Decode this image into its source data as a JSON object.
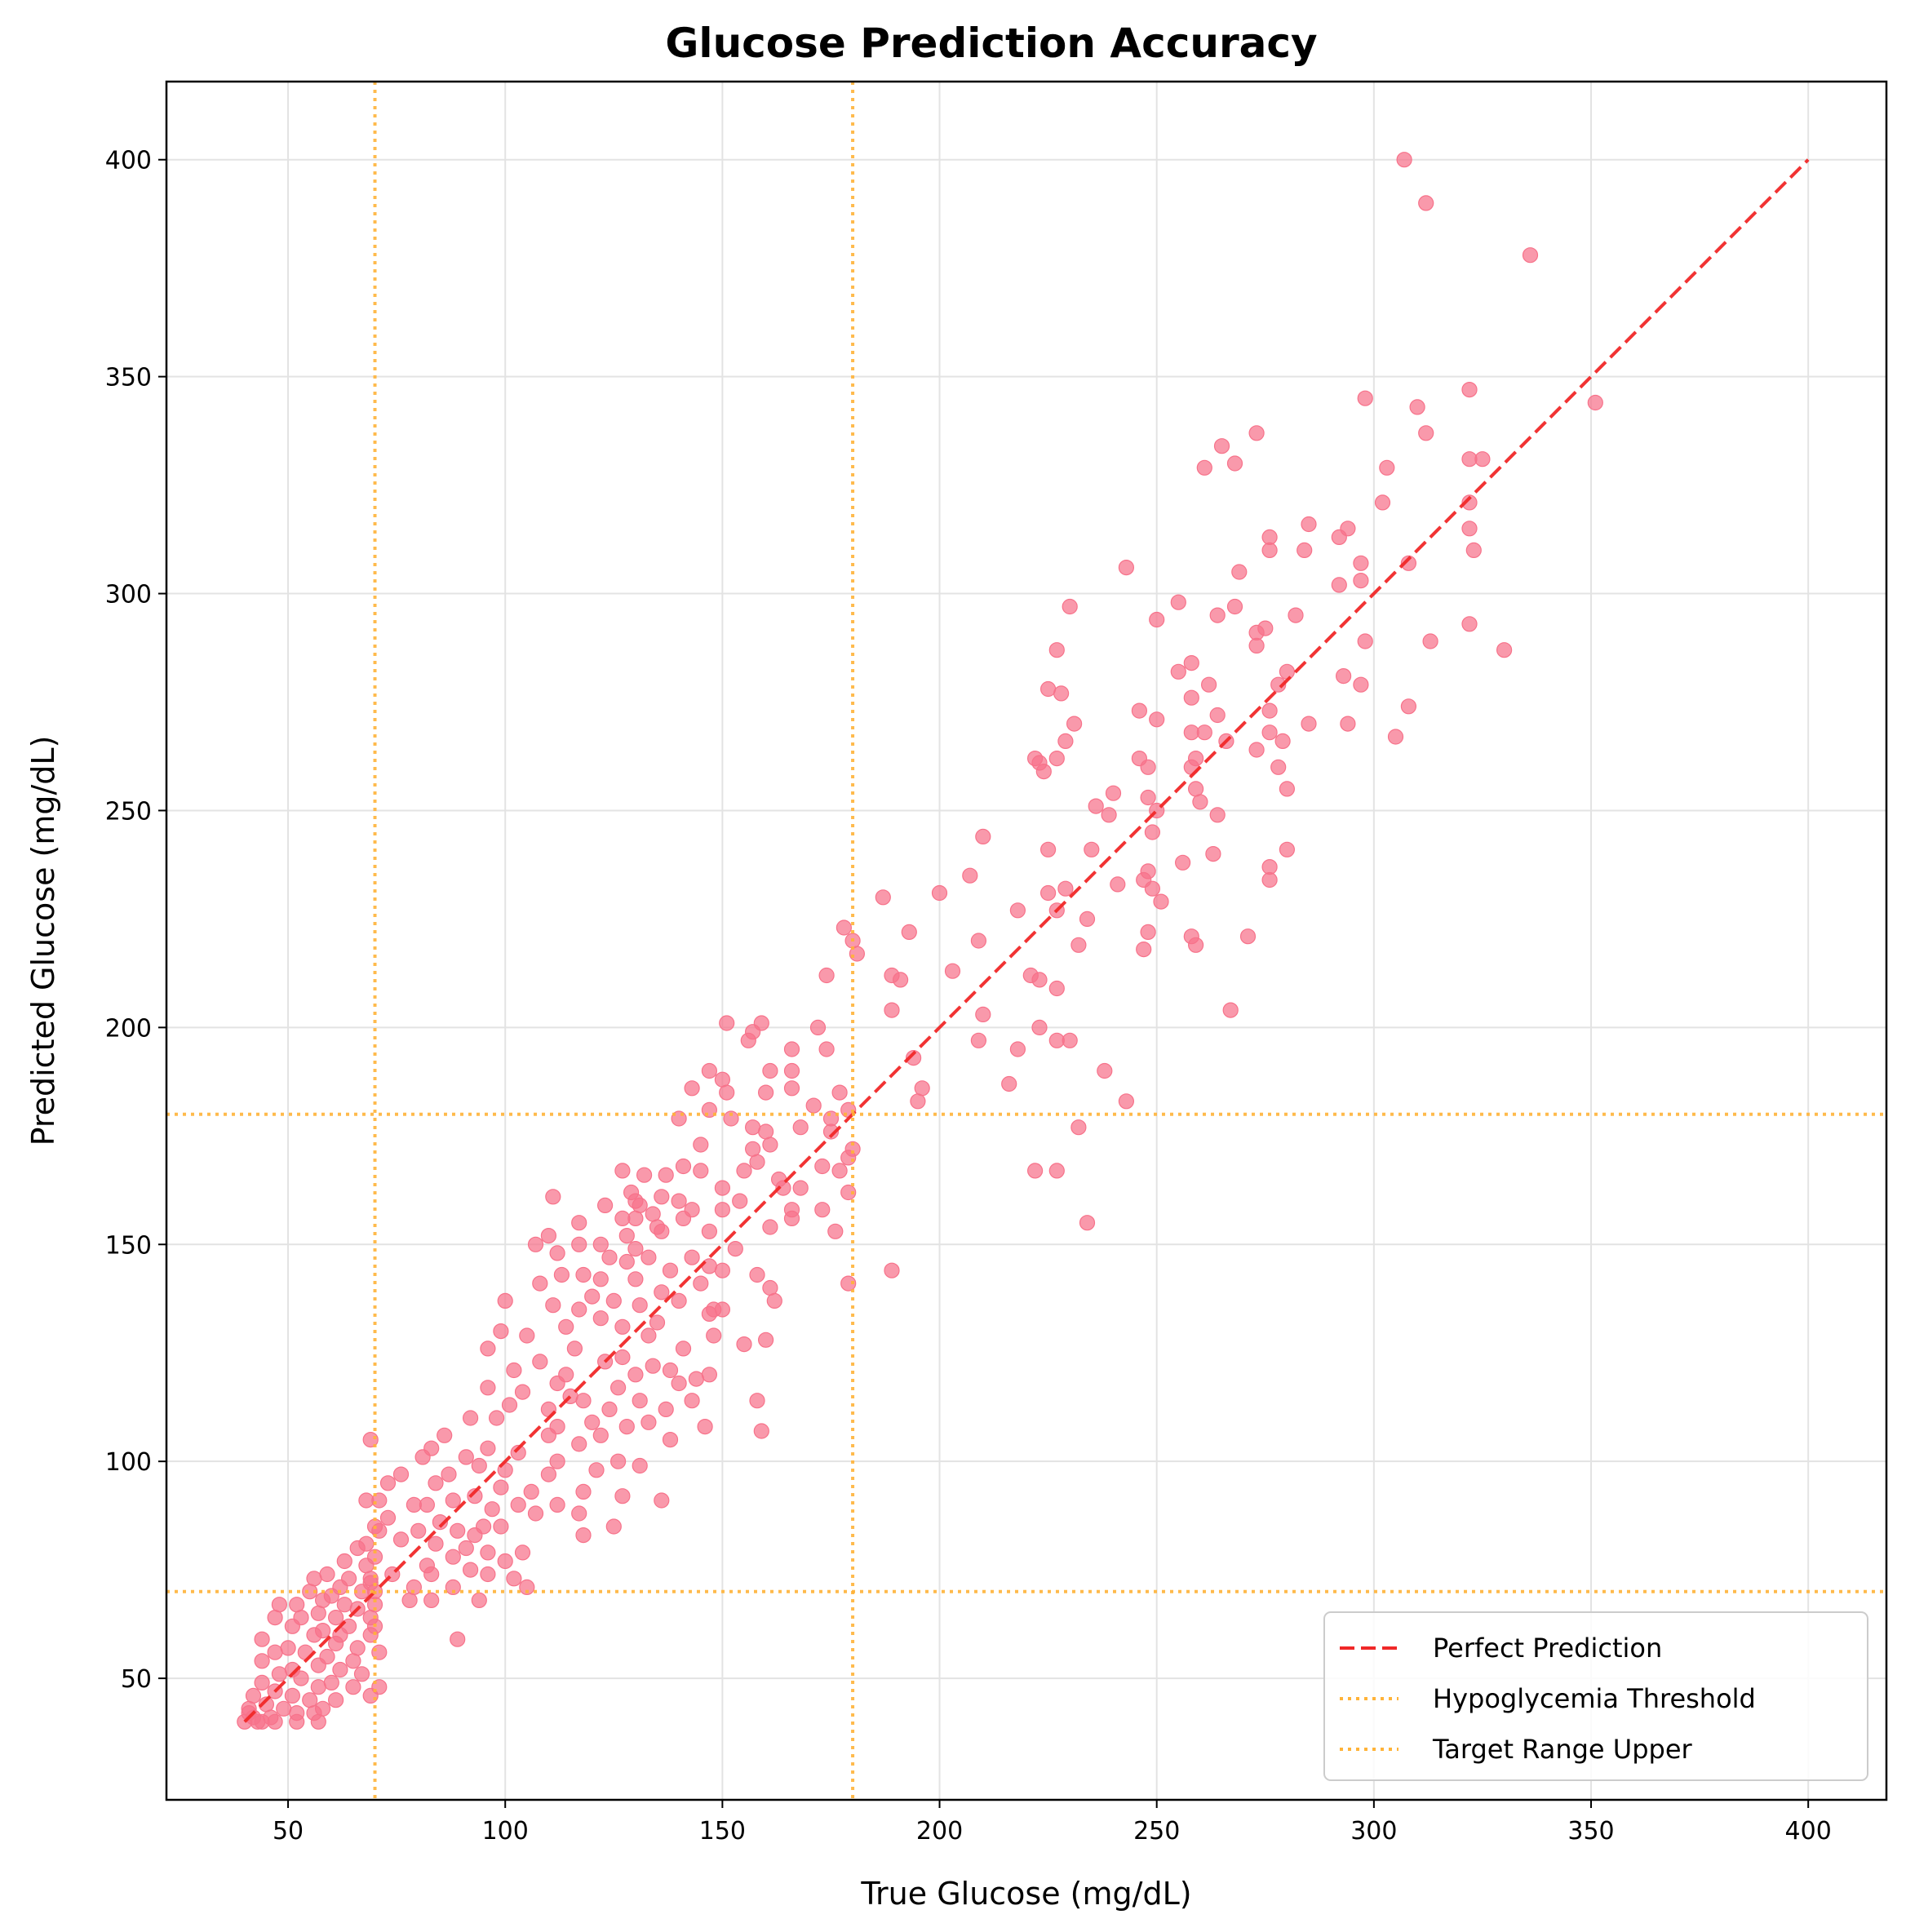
{
  "chart_data": {
    "type": "scatter",
    "title": "Glucose Prediction Accuracy",
    "xlabel": "True Glucose (mg/dL)",
    "ylabel": "Predicted Glucose (mg/dL)",
    "xlim": [
      22,
      418
    ],
    "ylim": [
      22,
      418
    ],
    "x_ticks": [
      50,
      100,
      150,
      200,
      250,
      300,
      350,
      400
    ],
    "y_ticks": [
      50,
      100,
      150,
      200,
      250,
      300,
      350,
      400
    ],
    "grid": true,
    "legend_position": "bottom-right",
    "colors": {
      "points": "#f7728a",
      "perfect_line": "#f02828",
      "thresholds": "#ffb338",
      "grid": "#e3e3e3"
    },
    "reference_lines": [
      {
        "name": "Perfect Prediction",
        "kind": "diagonal",
        "from": [
          40,
          40
        ],
        "to": [
          400,
          400
        ],
        "style": "dashed"
      },
      {
        "name": "Hypoglycemia Threshold",
        "kind": "vertical",
        "x": 70,
        "style": "dotted"
      },
      {
        "name": "Hypoglycemia Threshold",
        "kind": "horizontal",
        "y": 70,
        "style": "dotted"
      },
      {
        "name": "Target Range Upper",
        "kind": "vertical",
        "x": 180,
        "style": "dotted"
      },
      {
        "name": "Target Range Upper",
        "kind": "horizontal",
        "y": 180,
        "style": "dotted"
      }
    ],
    "legend": [
      "Perfect Prediction",
      "Hypoglycemia Threshold",
      "Target Range Upper"
    ],
    "points": [
      [
        307,
        400
      ],
      [
        312,
        390
      ],
      [
        336,
        378
      ],
      [
        351,
        344
      ],
      [
        322,
        347
      ],
      [
        310,
        343
      ],
      [
        298,
        345
      ],
      [
        312,
        337
      ],
      [
        273,
        337
      ],
      [
        265,
        334
      ],
      [
        261,
        329
      ],
      [
        268,
        330
      ],
      [
        303,
        329
      ],
      [
        322,
        331
      ],
      [
        325,
        331
      ],
      [
        302,
        321
      ],
      [
        322,
        321
      ],
      [
        285,
        316
      ],
      [
        294,
        315
      ],
      [
        276,
        313
      ],
      [
        292,
        313
      ],
      [
        322,
        315
      ],
      [
        323,
        310
      ],
      [
        284,
        310
      ],
      [
        276,
        310
      ],
      [
        297,
        307
      ],
      [
        308,
        307
      ],
      [
        243,
        306
      ],
      [
        269,
        305
      ],
      [
        292,
        302
      ],
      [
        297,
        303
      ],
      [
        255,
        298
      ],
      [
        268,
        297
      ],
      [
        230,
        297
      ],
      [
        250,
        294
      ],
      [
        264,
        295
      ],
      [
        282,
        295
      ],
      [
        322,
        293
      ],
      [
        275,
        292
      ],
      [
        273,
        291
      ],
      [
        313,
        289
      ],
      [
        298,
        289
      ],
      [
        273,
        288
      ],
      [
        330,
        287
      ],
      [
        227,
        287
      ],
      [
        258,
        284
      ],
      [
        255,
        282
      ],
      [
        280,
        282
      ],
      [
        293,
        281
      ],
      [
        262,
        279
      ],
      [
        278,
        279
      ],
      [
        225,
        278
      ],
      [
        228,
        277
      ],
      [
        258,
        276
      ],
      [
        297,
        279
      ],
      [
        264,
        272
      ],
      [
        276,
        273
      ],
      [
        308,
        274
      ],
      [
        246,
        273
      ],
      [
        231,
        270
      ],
      [
        285,
        270
      ],
      [
        294,
        270
      ],
      [
        250,
        271
      ],
      [
        276,
        268
      ],
      [
        258,
        268
      ],
      [
        261,
        268
      ],
      [
        266,
        266
      ],
      [
        229,
        266
      ],
      [
        279,
        266
      ],
      [
        305,
        267
      ],
      [
        273,
        264
      ],
      [
        278,
        260
      ],
      [
        246,
        262
      ],
      [
        227,
        262
      ],
      [
        222,
        262
      ],
      [
        259,
        262
      ],
      [
        258,
        260
      ],
      [
        248,
        260
      ],
      [
        223,
        261
      ],
      [
        224,
        259
      ],
      [
        260,
        252
      ],
      [
        280,
        255
      ],
      [
        259,
        255
      ],
      [
        240,
        254
      ],
      [
        248,
        253
      ],
      [
        239,
        249
      ],
      [
        264,
        249
      ],
      [
        236,
        251
      ],
      [
        250,
        250
      ],
      [
        249,
        245
      ],
      [
        210,
        244
      ],
      [
        225,
        241
      ],
      [
        263,
        240
      ],
      [
        235,
        241
      ],
      [
        280,
        241
      ],
      [
        276,
        237
      ],
      [
        256,
        238
      ],
      [
        248,
        236
      ],
      [
        207,
        235
      ],
      [
        241,
        233
      ],
      [
        247,
        234
      ],
      [
        276,
        234
      ],
      [
        249,
        232
      ],
      [
        229,
        232
      ],
      [
        200,
        231
      ],
      [
        225,
        231
      ],
      [
        187,
        230
      ],
      [
        251,
        229
      ],
      [
        227,
        227
      ],
      [
        218,
        227
      ],
      [
        234,
        225
      ],
      [
        178,
        223
      ],
      [
        193,
        222
      ],
      [
        248,
        222
      ],
      [
        258,
        221
      ],
      [
        271,
        221
      ],
      [
        209,
        220
      ],
      [
        259,
        219
      ],
      [
        232,
        219
      ],
      [
        180,
        220
      ],
      [
        247,
        218
      ],
      [
        181,
        217
      ],
      [
        203,
        213
      ],
      [
        221,
        212
      ],
      [
        191,
        211
      ],
      [
        174,
        212
      ],
      [
        189,
        212
      ],
      [
        223,
        211
      ],
      [
        227,
        209
      ],
      [
        210,
        203
      ],
      [
        189,
        204
      ],
      [
        267,
        204
      ],
      [
        151,
        201
      ],
      [
        159,
        201
      ],
      [
        157,
        199
      ],
      [
        172,
        200
      ],
      [
        223,
        200
      ],
      [
        209,
        197
      ],
      [
        230,
        197
      ],
      [
        156,
        197
      ],
      [
        174,
        195
      ],
      [
        166,
        195
      ],
      [
        227,
        197
      ],
      [
        218,
        195
      ],
      [
        194,
        193
      ],
      [
        196,
        186
      ],
      [
        166,
        190
      ],
      [
        147,
        190
      ],
      [
        238,
        190
      ],
      [
        161,
        190
      ],
      [
        216,
        187
      ],
      [
        150,
        188
      ],
      [
        143,
        186
      ],
      [
        166,
        186
      ],
      [
        151,
        185
      ],
      [
        160,
        185
      ],
      [
        243,
        183
      ],
      [
        195,
        183
      ],
      [
        177,
        185
      ],
      [
        171,
        182
      ],
      [
        147,
        181
      ],
      [
        175,
        179
      ],
      [
        179,
        181
      ],
      [
        232,
        177
      ],
      [
        175,
        176
      ],
      [
        160,
        176
      ],
      [
        157,
        177
      ],
      [
        152,
        179
      ],
      [
        140,
        179
      ],
      [
        161,
        173
      ],
      [
        180,
        172
      ],
      [
        168,
        177
      ],
      [
        145,
        173
      ],
      [
        179,
        170
      ],
      [
        158,
        169
      ],
      [
        157,
        172
      ],
      [
        173,
        168
      ],
      [
        141,
        168
      ],
      [
        137,
        166
      ],
      [
        127,
        167
      ],
      [
        132,
        166
      ],
      [
        145,
        167
      ],
      [
        155,
        167
      ],
      [
        177,
        167
      ],
      [
        222,
        167
      ],
      [
        227,
        167
      ],
      [
        163,
        165
      ],
      [
        168,
        163
      ],
      [
        150,
        163
      ],
      [
        164,
        163
      ],
      [
        154,
        160
      ],
      [
        136,
        161
      ],
      [
        129,
        162
      ],
      [
        111,
        161
      ],
      [
        130,
        160
      ],
      [
        140,
        160
      ],
      [
        150,
        158
      ],
      [
        143,
        158
      ],
      [
        123,
        159
      ],
      [
        131,
        159
      ],
      [
        166,
        158
      ],
      [
        173,
        158
      ],
      [
        179,
        162
      ],
      [
        134,
        157
      ],
      [
        127,
        156
      ],
      [
        166,
        156
      ],
      [
        130,
        156
      ],
      [
        141,
        156
      ],
      [
        117,
        155
      ],
      [
        135,
        154
      ],
      [
        136,
        153
      ],
      [
        110,
        152
      ],
      [
        128,
        152
      ],
      [
        147,
        153
      ],
      [
        176,
        153
      ],
      [
        161,
        154
      ],
      [
        234,
        155
      ],
      [
        122,
        150
      ],
      [
        153,
        149
      ],
      [
        130,
        149
      ],
      [
        133,
        147
      ],
      [
        117,
        150
      ],
      [
        107,
        150
      ],
      [
        112,
        148
      ],
      [
        124,
        147
      ],
      [
        143,
        147
      ],
      [
        128,
        146
      ],
      [
        147,
        145
      ],
      [
        138,
        144
      ],
      [
        150,
        144
      ],
      [
        118,
        143
      ],
      [
        158,
        143
      ],
      [
        130,
        142
      ],
      [
        122,
        142
      ],
      [
        113,
        143
      ],
      [
        108,
        141
      ],
      [
        145,
        141
      ],
      [
        179,
        141
      ],
      [
        189,
        144
      ],
      [
        161,
        140
      ],
      [
        136,
        139
      ],
      [
        120,
        138
      ],
      [
        125,
        137
      ],
      [
        140,
        137
      ],
      [
        148,
        135
      ],
      [
        162,
        137
      ],
      [
        100,
        137
      ],
      [
        131,
        136
      ],
      [
        111,
        136
      ],
      [
        117,
        135
      ],
      [
        150,
        135
      ],
      [
        147,
        134
      ],
      [
        122,
        133
      ],
      [
        135,
        132
      ],
      [
        127,
        131
      ],
      [
        114,
        131
      ],
      [
        99,
        130
      ],
      [
        105,
        129
      ],
      [
        133,
        129
      ],
      [
        148,
        129
      ],
      [
        160,
        128
      ],
      [
        155,
        127
      ],
      [
        141,
        126
      ],
      [
        116,
        126
      ],
      [
        127,
        124
      ],
      [
        123,
        123
      ],
      [
        134,
        122
      ],
      [
        138,
        121
      ],
      [
        147,
        120
      ],
      [
        108,
        123
      ],
      [
        96,
        126
      ],
      [
        102,
        121
      ],
      [
        114,
        120
      ],
      [
        130,
        120
      ],
      [
        140,
        118
      ],
      [
        112,
        118
      ],
      [
        144,
        119
      ],
      [
        126,
        117
      ],
      [
        96,
        117
      ],
      [
        104,
        116
      ],
      [
        115,
        115
      ],
      [
        118,
        114
      ],
      [
        131,
        114
      ],
      [
        137,
        112
      ],
      [
        143,
        114
      ],
      [
        158,
        114
      ],
      [
        101,
        113
      ],
      [
        110,
        112
      ],
      [
        124,
        112
      ],
      [
        133,
        109
      ],
      [
        92,
        110
      ],
      [
        98,
        110
      ],
      [
        120,
        109
      ],
      [
        112,
        108
      ],
      [
        128,
        108
      ],
      [
        146,
        108
      ],
      [
        86,
        106
      ],
      [
        110,
        106
      ],
      [
        122,
        106
      ],
      [
        138,
        105
      ],
      [
        159,
        107
      ],
      [
        83,
        103
      ],
      [
        96,
        103
      ],
      [
        117,
        104
      ],
      [
        103,
        102
      ],
      [
        91,
        101
      ],
      [
        112,
        100
      ],
      [
        126,
        100
      ],
      [
        131,
        99
      ],
      [
        81,
        101
      ],
      [
        94,
        99
      ],
      [
        100,
        98
      ],
      [
        121,
        98
      ],
      [
        76,
        97
      ],
      [
        87,
        97
      ],
      [
        110,
        97
      ],
      [
        73,
        95
      ],
      [
        84,
        95
      ],
      [
        99,
        94
      ],
      [
        118,
        93
      ],
      [
        106,
        93
      ],
      [
        127,
        92
      ],
      [
        93,
        92
      ],
      [
        88,
        91
      ],
      [
        79,
        90
      ],
      [
        71,
        91
      ],
      [
        136,
        91
      ],
      [
        103,
        90
      ],
      [
        82,
        90
      ],
      [
        112,
        90
      ],
      [
        97,
        89
      ],
      [
        117,
        88
      ],
      [
        107,
        88
      ],
      [
        73,
        87
      ],
      [
        85,
        86
      ],
      [
        95,
        85
      ],
      [
        125,
        85
      ],
      [
        89,
        84
      ],
      [
        80,
        84
      ],
      [
        71,
        84
      ],
      [
        99,
        85
      ],
      [
        93,
        83
      ],
      [
        118,
        83
      ],
      [
        76,
        82
      ],
      [
        84,
        81
      ],
      [
        91,
        80
      ],
      [
        68,
        81
      ],
      [
        96,
        79
      ],
      [
        104,
        79
      ],
      [
        70,
        78
      ],
      [
        88,
        78
      ],
      [
        100,
        77
      ],
      [
        82,
        76
      ],
      [
        63,
        77
      ],
      [
        68,
        76
      ],
      [
        92,
        75
      ],
      [
        74,
        74
      ],
      [
        96,
        74
      ],
      [
        83,
        74
      ],
      [
        59,
        74
      ],
      [
        64,
        73
      ],
      [
        56,
        73
      ],
      [
        102,
        73
      ],
      [
        69,
        72
      ],
      [
        79,
        71
      ],
      [
        62,
        71
      ],
      [
        105,
        71
      ],
      [
        88,
        71
      ],
      [
        55,
        70
      ],
      [
        67,
        70
      ],
      [
        60,
        69
      ],
      [
        58,
        68
      ],
      [
        78,
        68
      ],
      [
        83,
        68
      ],
      [
        94,
        68
      ],
      [
        63,
        67
      ],
      [
        52,
        67
      ],
      [
        48,
        67
      ],
      [
        70,
        67
      ],
      [
        66,
        66
      ],
      [
        57,
        65
      ],
      [
        61,
        64
      ],
      [
        53,
        64
      ],
      [
        69,
        64
      ],
      [
        47,
        64
      ],
      [
        64,
        62
      ],
      [
        58,
        61
      ],
      [
        51,
        62
      ],
      [
        70,
        62
      ],
      [
        62,
        60
      ],
      [
        56,
        60
      ],
      [
        44,
        59
      ],
      [
        89,
        59
      ],
      [
        61,
        58
      ],
      [
        50,
        57
      ],
      [
        66,
        57
      ],
      [
        54,
        56
      ],
      [
        71,
        56
      ],
      [
        47,
        56
      ],
      [
        59,
        55
      ],
      [
        65,
        54
      ],
      [
        44,
        54
      ],
      [
        57,
        53
      ],
      [
        51,
        52
      ],
      [
        62,
        52
      ],
      [
        48,
        51
      ],
      [
        67,
        51
      ],
      [
        53,
        50
      ],
      [
        44,
        49
      ],
      [
        60,
        49
      ],
      [
        57,
        48
      ],
      [
        65,
        48
      ],
      [
        71,
        48
      ],
      [
        47,
        47
      ],
      [
        51,
        46
      ],
      [
        42,
        46
      ],
      [
        61,
        45
      ],
      [
        55,
        45
      ],
      [
        69,
        46
      ],
      [
        45,
        44
      ],
      [
        49,
        43
      ],
      [
        58,
        43
      ],
      [
        52,
        42
      ],
      [
        41,
        43
      ],
      [
        56,
        42
      ],
      [
        46,
        41
      ],
      [
        42,
        41
      ],
      [
        47,
        40
      ],
      [
        44,
        40
      ],
      [
        40,
        40
      ],
      [
        52,
        40
      ],
      [
        57,
        40
      ],
      [
        41,
        42
      ],
      [
        43,
        40
      ],
      [
        69,
        105
      ],
      [
        68,
        91
      ],
      [
        66,
        80
      ],
      [
        69,
        73
      ],
      [
        70,
        70
      ],
      [
        70,
        85
      ],
      [
        69,
        60
      ]
    ]
  }
}
